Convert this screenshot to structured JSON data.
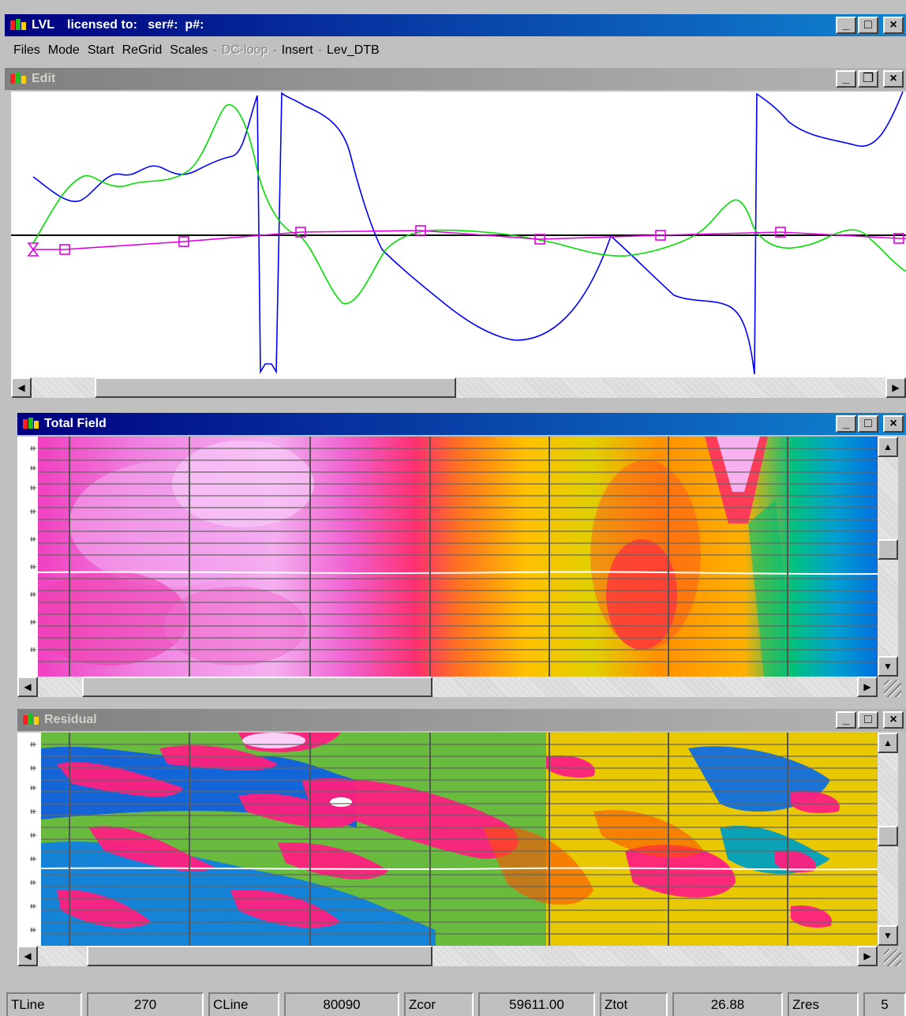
{
  "app": {
    "title": "LVL",
    "license_text": "licensed to:   ser#:  p#:",
    "menu": [
      "Files",
      "Mode",
      "Start",
      "ReGrid",
      "Scales",
      "DC-loop",
      "Insert",
      "Lev_DTB"
    ],
    "menu_disabled": [
      "DC-loop"
    ]
  },
  "windows": {
    "edit": {
      "title": "Edit"
    },
    "total_field": {
      "title": "Total Field"
    },
    "residual": {
      "title": "Residual"
    }
  },
  "status": {
    "tline_label": "TLine",
    "tline_value": "270",
    "cline_label": "CLine",
    "cline_value": "80090",
    "zcor_label": "Zcor",
    "zcor_value": "59611.00",
    "ztot_label": "Ztot",
    "ztot_value": "26.88",
    "zres_label": "Zres",
    "zres_value": "5"
  },
  "window_buttons": {
    "minimize": "_",
    "maximize": "□",
    "restore": "❐",
    "close": "×"
  },
  "colors": {
    "edit_blue": "#0000ff",
    "edit_green": "#00e000",
    "edit_magenta": "#e000e0",
    "baseline": "#000000",
    "title_active": "#000080",
    "title_inactive": "#808080"
  },
  "icons": [
    "app-icon",
    "minimize-icon",
    "maximize-icon",
    "restore-icon",
    "close-icon",
    "scroll-left-icon",
    "scroll-right-icon",
    "scroll-up-icon",
    "scroll-down-icon"
  ]
}
